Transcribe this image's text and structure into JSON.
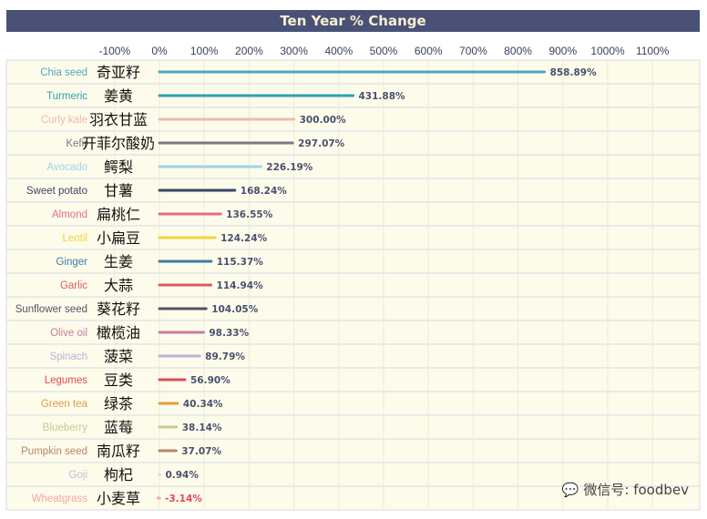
{
  "title": "Ten Year % Change",
  "watermark": "微信号: foodbev",
  "chart_data": {
    "type": "bar",
    "orientation": "horizontal",
    "title": "Ten Year % Change",
    "xlim": [
      -100,
      1100
    ],
    "xticks": [
      "-100%",
      "0%",
      "100%",
      "200%",
      "300%",
      "400%",
      "500%",
      "600%",
      "700%",
      "800%",
      "900%",
      "1000%",
      "1100%"
    ],
    "grid": true,
    "items": [
      {
        "label": "Chia seed",
        "label_cn": "奇亚籽",
        "value": 858.89,
        "display": "858.89%",
        "color": "#4fa7c2"
      },
      {
        "label": "Turmeric",
        "label_cn": "姜黄",
        "value": 431.88,
        "display": "431.88%",
        "color": "#2aa2ad"
      },
      {
        "label": "Curly kale",
        "label_cn": "羽衣甘蓝",
        "value": 300.0,
        "display": "300.00%",
        "color": "#f2b8ad"
      },
      {
        "label": "Kefir",
        "label_cn": "开菲尔酸奶",
        "value": 297.07,
        "display": "297.07%",
        "color": "#777a85"
      },
      {
        "label": "Avocado",
        "label_cn": "鳄梨",
        "value": 226.19,
        "display": "226.19%",
        "color": "#9fd3e8"
      },
      {
        "label": "Sweet potato",
        "label_cn": "甘薯",
        "value": 168.24,
        "display": "168.24%",
        "color": "#3c4466"
      },
      {
        "label": "Almond",
        "label_cn": "扁桃仁",
        "value": 136.55,
        "display": "136.55%",
        "color": "#e46d85"
      },
      {
        "label": "Lentil",
        "label_cn": "小扁豆",
        "value": 124.24,
        "display": "124.24%",
        "color": "#f4d33e"
      },
      {
        "label": "Ginger",
        "label_cn": "生姜",
        "value": 115.37,
        "display": "115.37%",
        "color": "#3b7da5"
      },
      {
        "label": "Garlic",
        "label_cn": "大蒜",
        "value": 114.94,
        "display": "114.94%",
        "color": "#d85e62"
      },
      {
        "label": "Sunflower seed",
        "label_cn": "葵花籽",
        "value": 104.05,
        "display": "104.05%",
        "color": "#5b4d6a"
      },
      {
        "label": "Olive oil",
        "label_cn": "橄榄油",
        "value": 98.33,
        "display": "98.33%",
        "color": "#c97ba2"
      },
      {
        "label": "Spinach",
        "label_cn": "菠菜",
        "value": 89.79,
        "display": "89.79%",
        "color": "#b7b4de"
      },
      {
        "label": "Legumes",
        "label_cn": "豆类",
        "value": 56.9,
        "display": "56.90%",
        "color": "#e0485a"
      },
      {
        "label": "Green tea",
        "label_cn": "绿茶",
        "value": 40.34,
        "display": "40.34%",
        "color": "#e39d44"
      },
      {
        "label": "Blueberry",
        "label_cn": "蓝莓",
        "value": 38.14,
        "display": "38.14%",
        "color": "#c9c797"
      },
      {
        "label": "Pumpkin seed",
        "label_cn": "南瓜籽",
        "value": 37.07,
        "display": "37.07%",
        "color": "#b78669"
      },
      {
        "label": "Goji",
        "label_cn": "枸杞",
        "value": 0.94,
        "display": "0.94%",
        "color": "#cfd9e6"
      },
      {
        "label": "Wheatgrass",
        "label_cn": "小麦草",
        "value": -3.14,
        "display": "-3.14%",
        "color": "#f3a7a0"
      }
    ],
    "colors": {
      "title_bg": "#4a5177",
      "title_text": "#f6f0cf",
      "row_bg": "#fdfbea",
      "grid": "#ecebd8",
      "value_label": "#4a5070",
      "negative_label": "#e0485a"
    }
  }
}
